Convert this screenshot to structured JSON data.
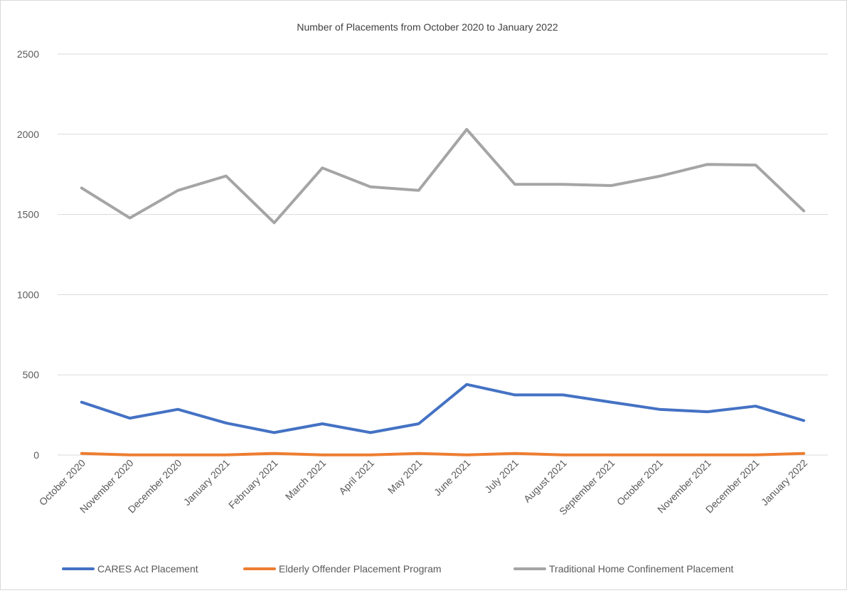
{
  "chart_data": {
    "type": "line",
    "title": "Number of Placements from October 2020 to January 2022",
    "xlabel": "",
    "ylabel": "",
    "ylim": [
      0,
      2500
    ],
    "yticks": [
      0,
      500,
      1000,
      1500,
      2000,
      2500
    ],
    "grid": true,
    "legend_position": "bottom",
    "categories": [
      "October 2020",
      "November 2020",
      "December 2020",
      "January 2021",
      "February 2021",
      "March 2021",
      "April 2021",
      "May 2021",
      "June 2021",
      "July 2021",
      "August 2021",
      "September 2021",
      "October 2021",
      "November 2021",
      "December 2021",
      "January 2022"
    ],
    "series": [
      {
        "name": "CARES Act Placement",
        "color": "#4472c4",
        "values": [
          330,
          230,
          285,
          200,
          140,
          195,
          140,
          195,
          440,
          375,
          375,
          330,
          285,
          270,
          305,
          215
        ]
      },
      {
        "name": "Elderly Offender Placement Program",
        "color": "#ed7d31",
        "values": [
          10,
          1,
          1,
          1,
          10,
          1,
          1,
          10,
          1,
          10,
          1,
          1,
          1,
          1,
          1,
          10
        ]
      },
      {
        "name": "Traditional Home Confinement Placement",
        "color": "#a5a5a5",
        "values": [
          1665,
          1478,
          1650,
          1740,
          1448,
          1790,
          1672,
          1650,
          2030,
          1688,
          1688,
          1680,
          1738,
          1812,
          1808,
          1522
        ]
      }
    ]
  }
}
